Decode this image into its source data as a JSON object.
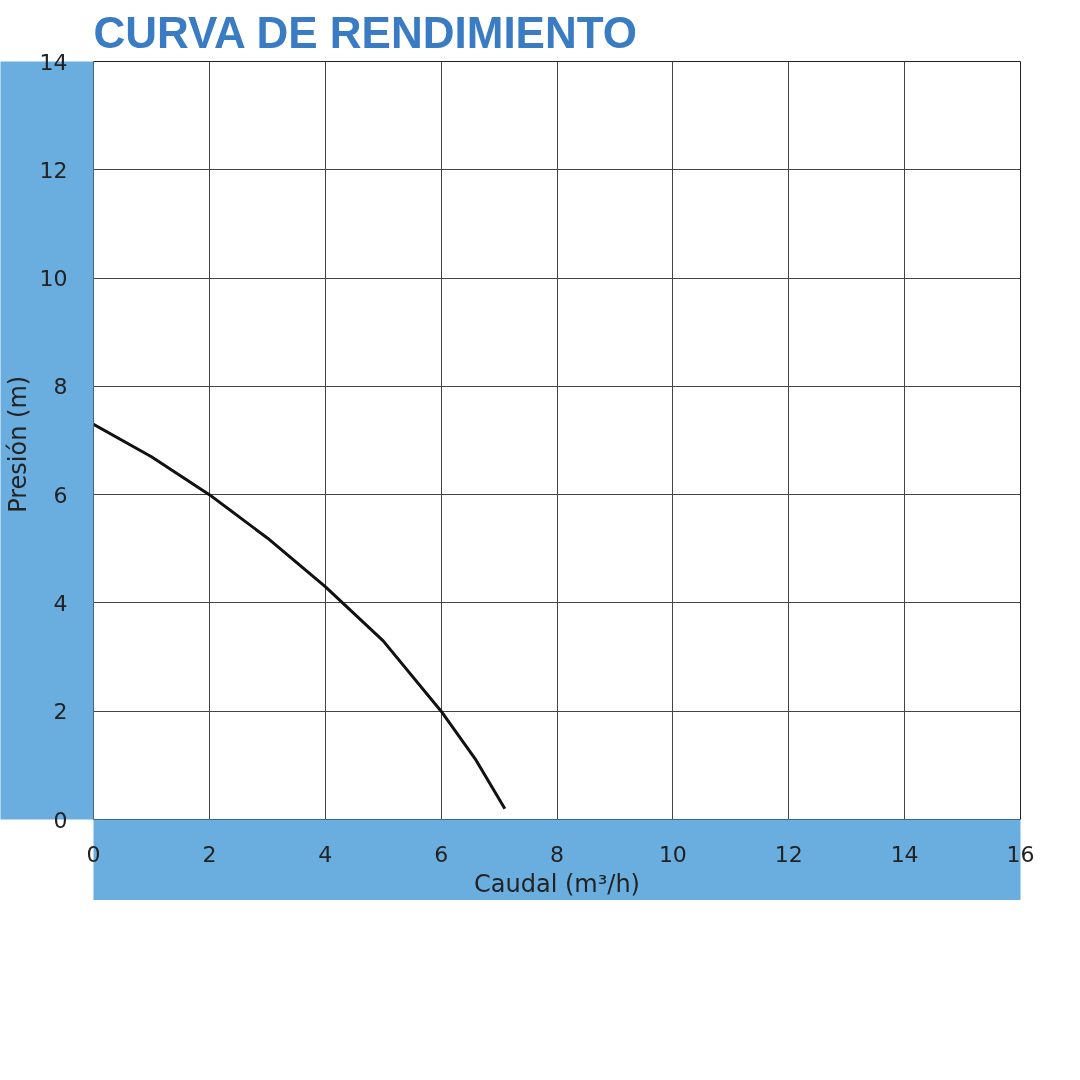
{
  "chart_data": {
    "type": "line",
    "title": "CURVA DE RENDIMIENTO",
    "xlabel": "Caudal (m³/h)",
    "ylabel": "Presión  (m)",
    "xlim": [
      0,
      16
    ],
    "ylim": [
      0,
      14
    ],
    "xticks": [
      0,
      2,
      4,
      6,
      8,
      10,
      12,
      14,
      16
    ],
    "yticks": [
      0,
      2,
      4,
      6,
      8,
      10,
      12,
      14
    ],
    "grid": true,
    "series": [
      {
        "color": "#111111",
        "x": [
          0,
          1,
          2,
          3,
          4,
          5,
          6,
          6.6,
          7.1
        ],
        "values": [
          7.3,
          6.7,
          6.0,
          5.2,
          4.3,
          3.3,
          2.0,
          1.1,
          0.2
        ]
      }
    ]
  }
}
